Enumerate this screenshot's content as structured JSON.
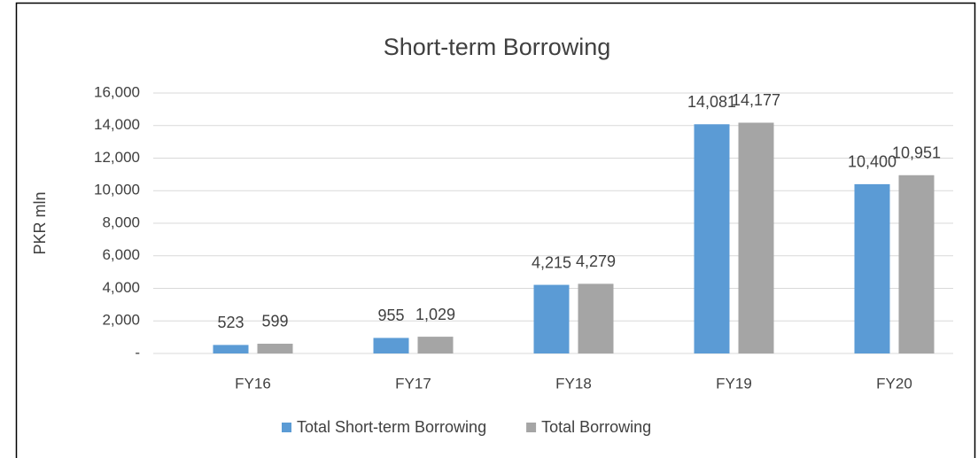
{
  "chart_data": {
    "type": "bar",
    "title": "Short-term Borrowing",
    "y_label": "PKR mln",
    "categories": [
      "FY16",
      "FY17",
      "FY18",
      "FY19",
      "FY20"
    ],
    "series": [
      {
        "name": "Total Short-term Borrowing",
        "color": "#5b9bd5",
        "values": [
          523,
          955,
          4215,
          14081,
          10400
        ],
        "value_labels": [
          "523",
          "955",
          "4,215",
          "14,081",
          "10,400"
        ]
      },
      {
        "name": "Total Borrowing",
        "color": "#a5a5a5",
        "values": [
          599,
          1029,
          4279,
          14177,
          10951
        ],
        "value_labels": [
          "599",
          "1,029",
          "4,279",
          "14,177",
          "10,951"
        ]
      }
    ],
    "ylim": [
      0,
      16000
    ],
    "yticks": [
      {
        "value": 0,
        "label": "-"
      },
      {
        "value": 2000,
        "label": "2,000"
      },
      {
        "value": 4000,
        "label": "4,000"
      },
      {
        "value": 6000,
        "label": "6,000"
      },
      {
        "value": 8000,
        "label": "8,000"
      },
      {
        "value": 10000,
        "label": "10,000"
      },
      {
        "value": 12000,
        "label": "12,000"
      },
      {
        "value": 14000,
        "label": "14,000"
      },
      {
        "value": 16000,
        "label": "16,000"
      }
    ],
    "grid": true,
    "legend": "bottom"
  }
}
